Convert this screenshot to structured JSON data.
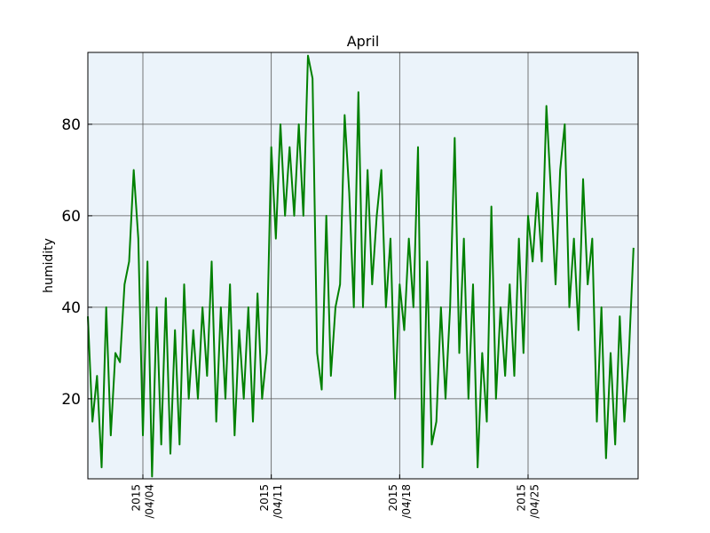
{
  "chart_data": {
    "type": "line",
    "title": "April",
    "y_label": "humidity",
    "x": [
      "2015-04-01T00:00",
      "2015-04-01T06:00",
      "2015-04-01T12:00",
      "2015-04-01T18:00",
      "2015-04-02T00:00",
      "2015-04-02T06:00",
      "2015-04-02T12:00",
      "2015-04-02T18:00",
      "2015-04-03T00:00",
      "2015-04-03T06:00",
      "2015-04-03T12:00",
      "2015-04-03T18:00",
      "2015-04-04T00:00",
      "2015-04-04T06:00",
      "2015-04-04T12:00",
      "2015-04-04T18:00",
      "2015-04-05T00:00",
      "2015-04-05T06:00",
      "2015-04-05T12:00",
      "2015-04-05T18:00",
      "2015-04-06T00:00",
      "2015-04-06T06:00",
      "2015-04-06T12:00",
      "2015-04-06T18:00",
      "2015-04-07T00:00",
      "2015-04-07T06:00",
      "2015-04-07T12:00",
      "2015-04-07T18:00",
      "2015-04-08T00:00",
      "2015-04-08T06:00",
      "2015-04-08T12:00",
      "2015-04-08T18:00",
      "2015-04-09T00:00",
      "2015-04-09T06:00",
      "2015-04-09T12:00",
      "2015-04-09T18:00",
      "2015-04-10T00:00",
      "2015-04-10T06:00",
      "2015-04-10T12:00",
      "2015-04-10T18:00",
      "2015-04-11T00:00",
      "2015-04-11T06:00",
      "2015-04-11T12:00",
      "2015-04-11T18:00",
      "2015-04-12T00:00",
      "2015-04-12T06:00",
      "2015-04-12T12:00",
      "2015-04-12T18:00",
      "2015-04-13T00:00",
      "2015-04-13T06:00",
      "2015-04-13T12:00",
      "2015-04-13T18:00",
      "2015-04-14T00:00",
      "2015-04-14T06:00",
      "2015-04-14T12:00",
      "2015-04-14T18:00",
      "2015-04-15T00:00",
      "2015-04-15T06:00",
      "2015-04-15T12:00",
      "2015-04-15T18:00",
      "2015-04-16T00:00",
      "2015-04-16T06:00",
      "2015-04-16T12:00",
      "2015-04-16T18:00",
      "2015-04-17T00:00",
      "2015-04-17T06:00",
      "2015-04-17T12:00",
      "2015-04-17T18:00",
      "2015-04-18T00:00",
      "2015-04-18T06:00",
      "2015-04-18T12:00",
      "2015-04-18T18:00",
      "2015-04-19T00:00",
      "2015-04-19T06:00",
      "2015-04-19T12:00",
      "2015-04-19T18:00",
      "2015-04-20T00:00",
      "2015-04-20T06:00",
      "2015-04-20T12:00",
      "2015-04-20T18:00",
      "2015-04-21T00:00",
      "2015-04-21T06:00",
      "2015-04-21T12:00",
      "2015-04-21T18:00",
      "2015-04-22T00:00",
      "2015-04-22T06:00",
      "2015-04-22T12:00",
      "2015-04-22T18:00",
      "2015-04-23T00:00",
      "2015-04-23T06:00",
      "2015-04-23T12:00",
      "2015-04-23T18:00",
      "2015-04-24T00:00",
      "2015-04-24T06:00",
      "2015-04-24T12:00",
      "2015-04-24T18:00",
      "2015-04-25T00:00",
      "2015-04-25T06:00",
      "2015-04-25T12:00",
      "2015-04-25T18:00",
      "2015-04-26T00:00",
      "2015-04-26T06:00",
      "2015-04-26T12:00",
      "2015-04-26T18:00",
      "2015-04-27T00:00",
      "2015-04-27T06:00",
      "2015-04-27T12:00",
      "2015-04-27T18:00",
      "2015-04-28T00:00",
      "2015-04-28T06:00",
      "2015-04-28T12:00",
      "2015-04-28T18:00",
      "2015-04-29T00:00",
      "2015-04-29T06:00",
      "2015-04-29T12:00",
      "2015-04-29T18:00",
      "2015-04-30T00:00",
      "2015-04-30T06:00",
      "2015-04-30T12:00",
      "2015-04-30T18:00"
    ],
    "series": [
      {
        "color": "#008000",
        "values": [
          38,
          15,
          25,
          5,
          40,
          12,
          30,
          28,
          45,
          50,
          70,
          55,
          12,
          50,
          3,
          40,
          10,
          42,
          8,
          35,
          10,
          45,
          20,
          35,
          20,
          40,
          25,
          50,
          15,
          40,
          20,
          45,
          12,
          35,
          20,
          40,
          15,
          43,
          20,
          30,
          75,
          55,
          80,
          60,
          75,
          60,
          80,
          60,
          95,
          90,
          30,
          22,
          60,
          25,
          40,
          45,
          82,
          65,
          40,
          87,
          40,
          70,
          45,
          60,
          70,
          40,
          55,
          20,
          45,
          35,
          55,
          40,
          75,
          5,
          50,
          10,
          15,
          40,
          20,
          40,
          77,
          30,
          55,
          20,
          45,
          5,
          30,
          15,
          62,
          20,
          40,
          25,
          45,
          25,
          55,
          30,
          60,
          50,
          65,
          50,
          84,
          65,
          45,
          70,
          80,
          40,
          55,
          35,
          68,
          45,
          55,
          15,
          40,
          7,
          30,
          10,
          38,
          15,
          30,
          53
        ]
      }
    ],
    "xlim": [
      "2015-04-01T00:00",
      "2015-05-01T00:00"
    ],
    "xticks": [
      {
        "value": "2015-04-04T00:00",
        "label": "2015\n/04/04"
      },
      {
        "value": "2015-04-11T00:00",
        "label": "2015\n/04/11"
      },
      {
        "value": "2015-04-18T00:00",
        "label": "2015\n/04/18"
      },
      {
        "value": "2015-04-25T00:00",
        "label": "2015\n/04/25"
      }
    ],
    "ylim": [
      2.5,
      95.7
    ],
    "yticks": [
      20,
      40,
      60,
      80
    ],
    "grid": true
  }
}
